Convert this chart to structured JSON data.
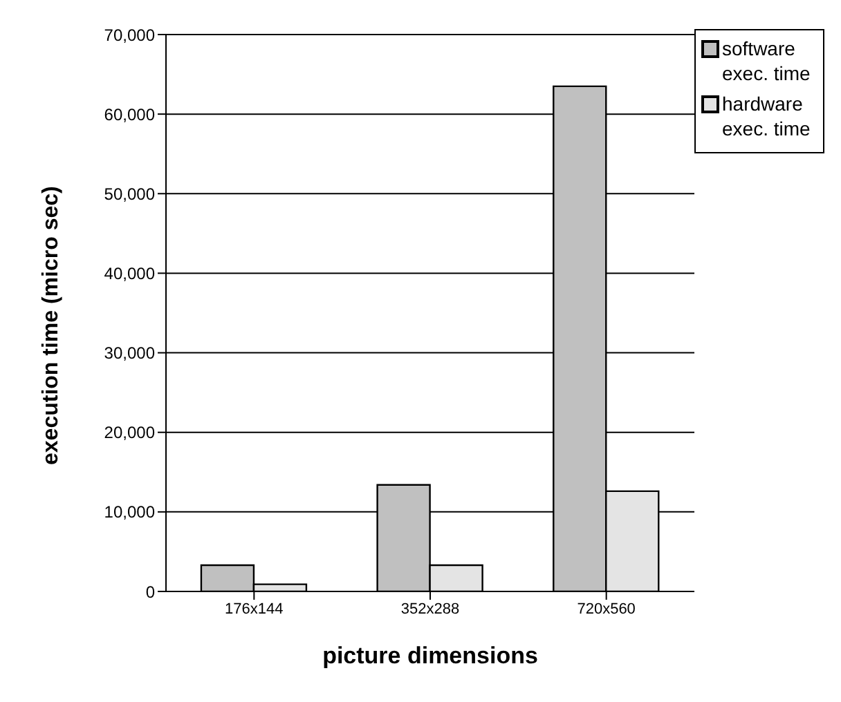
{
  "chart_data": {
    "type": "bar",
    "xlabel": "picture dimensions",
    "ylabel": "execution time (micro sec)",
    "categories": [
      "176x144",
      "352x288",
      "720x560"
    ],
    "series": [
      {
        "name": "software exec. time",
        "color": "#c0c0c0",
        "values": [
          3300,
          13400,
          63500
        ]
      },
      {
        "name": "hardware exec. time",
        "color": "#e4e4e4",
        "values": [
          900,
          3300,
          12600
        ]
      }
    ],
    "ylim": [
      0,
      70000
    ],
    "yticks": [
      {
        "value": 0,
        "label": "0"
      },
      {
        "value": 10000,
        "label": "10,000"
      },
      {
        "value": 20000,
        "label": "20,000"
      },
      {
        "value": 30000,
        "label": "30,000"
      },
      {
        "value": 40000,
        "label": "40,000"
      },
      {
        "value": 50000,
        "label": "50,000"
      },
      {
        "value": 60000,
        "label": "60,000"
      },
      {
        "value": 70000,
        "label": "70,000"
      }
    ],
    "grid": "y",
    "legend": "top right"
  }
}
